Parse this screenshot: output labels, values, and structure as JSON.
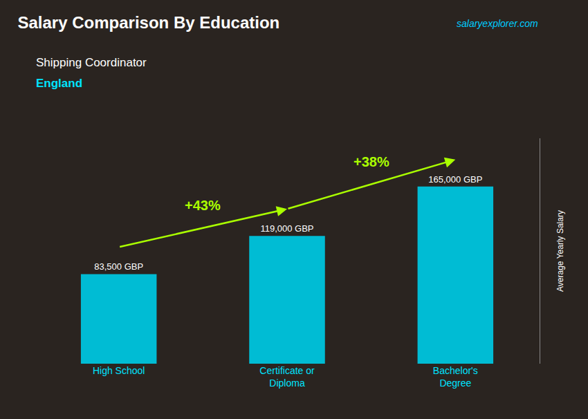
{
  "chart_data": {
    "type": "bar",
    "title": "Salary Comparison By Education",
    "subtitle": "Shipping Coordinator",
    "location": "England",
    "source": "salaryexplorer.com",
    "categories": [
      "High School",
      "Certificate or\nDiploma",
      "Bachelor's\nDegree"
    ],
    "values": [
      83500,
      119000,
      165000
    ],
    "value_labels": [
      "83,500 GBP",
      "119,000 GBP",
      "165,000 GBP"
    ],
    "data_labels": true,
    "annotations": [
      {
        "text": "+43%",
        "from": 0,
        "to": 1
      },
      {
        "text": "+38%",
        "from": 1,
        "to": 2
      }
    ],
    "color": "#00bcd4",
    "arrow_color": "#aaff00",
    "ylabel": "Average Yearly Salary",
    "ylim": [
      0,
      210000
    ],
    "tick_labels": "x",
    "grid": false
  }
}
